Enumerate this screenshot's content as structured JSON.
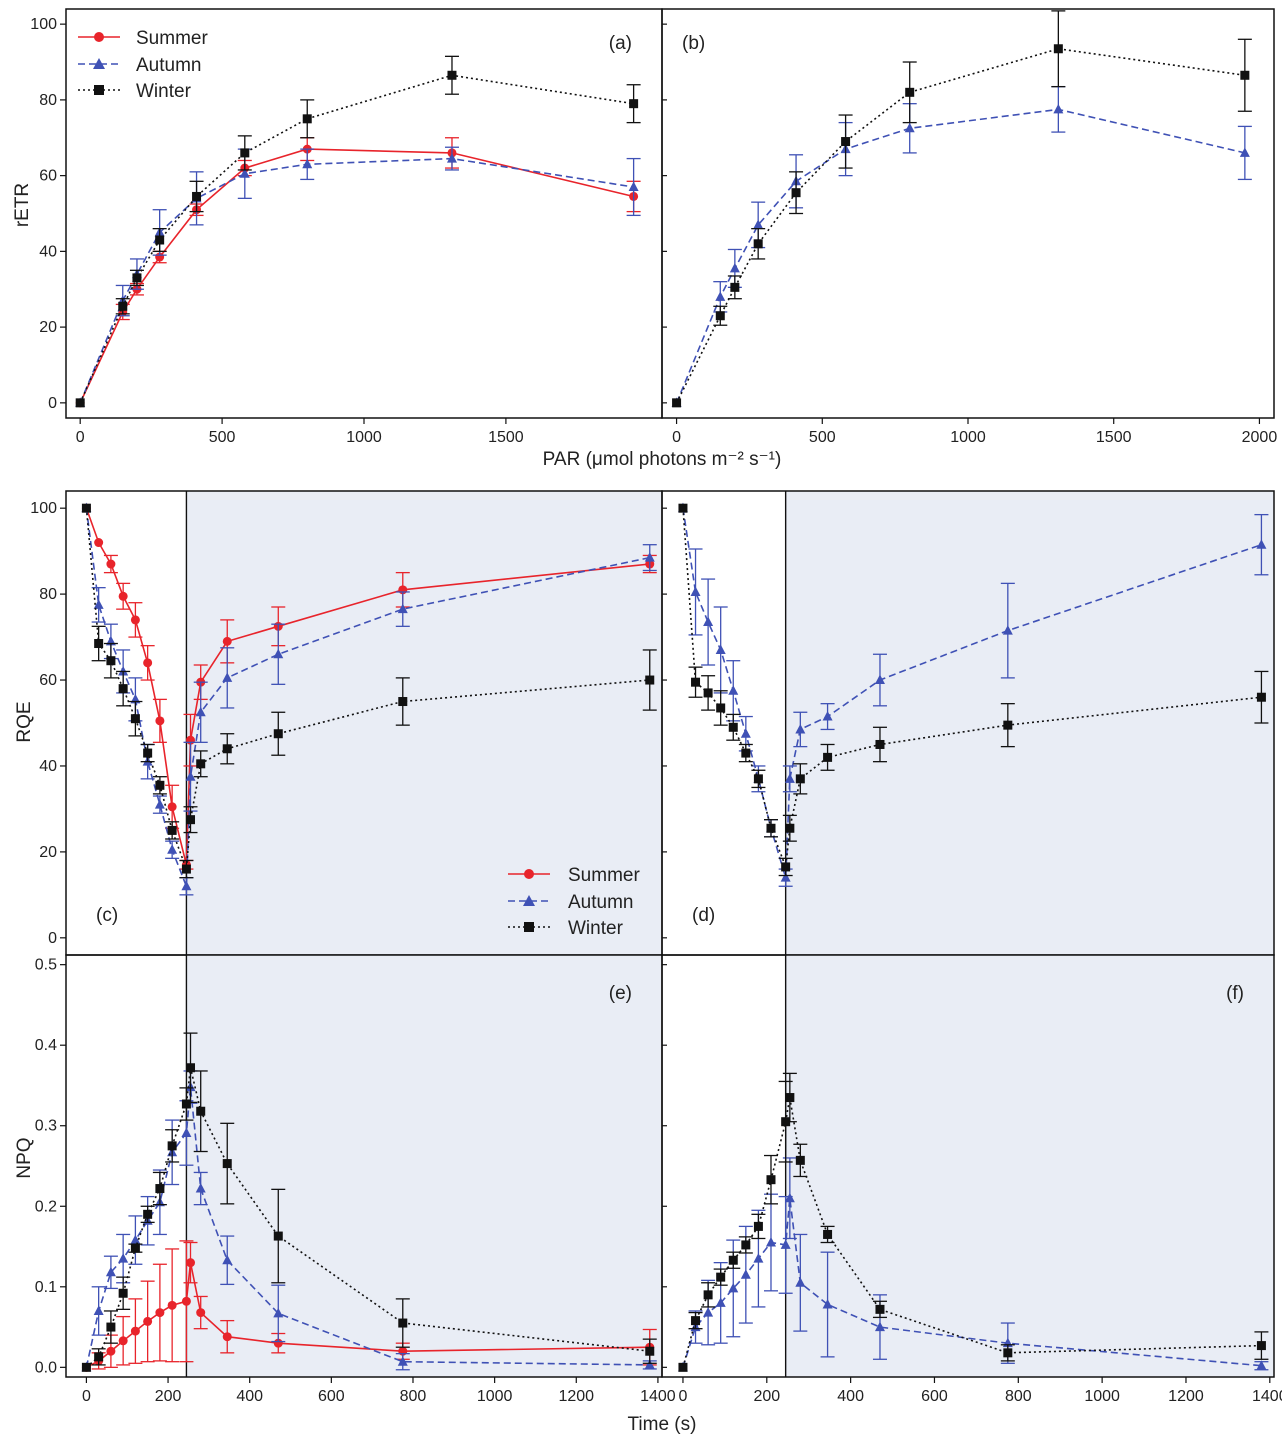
{
  "colors": {
    "summer": "#e8242b",
    "autumn": "#3f51b5",
    "winter": "#111111",
    "shade": "#e9edf5"
  },
  "labels": {
    "rETR": "rETR",
    "RQE": "RQE",
    "NPQ": "NPQ",
    "PAR": "PAR (μmol photons m⁻² s⁻¹)",
    "time": "Time (s)"
  },
  "legend": {
    "summer": "Summer",
    "autumn": "Autumn",
    "winter": "Winter"
  },
  "chart_data": [
    {
      "id": "a",
      "panel_label": "(a)",
      "type": "line",
      "xlim": [
        -50,
        2050
      ],
      "ylim": [
        -4,
        104
      ],
      "xticks": [
        0,
        500,
        1000,
        1500
      ],
      "yticks": [
        0,
        20,
        40,
        60,
        80,
        100
      ],
      "series": [
        {
          "name": "Summer",
          "key": "summer",
          "x": [
            0,
            150,
            200,
            280,
            410,
            580,
            800,
            1310,
            1950
          ],
          "y": [
            0,
            24,
            30,
            38.5,
            51,
            62,
            67,
            66,
            54.5
          ],
          "err": [
            0,
            2,
            1.5,
            1.5,
            1.5,
            2,
            3,
            4,
            4
          ]
        },
        {
          "name": "Autumn",
          "key": "autumn",
          "x": [
            0,
            150,
            200,
            280,
            410,
            580,
            800,
            1310,
            1950
          ],
          "y": [
            0,
            27,
            34,
            45,
            54,
            60.5,
            63,
            64.5,
            57
          ],
          "err": [
            0,
            4,
            4,
            6,
            7,
            6.5,
            4,
            3,
            7.5
          ]
        },
        {
          "name": "Winter",
          "key": "winter",
          "x": [
            0,
            150,
            200,
            280,
            410,
            580,
            800,
            1310,
            1950
          ],
          "y": [
            0,
            25.5,
            33,
            43,
            54.5,
            66,
            75,
            86.5,
            79
          ],
          "err": [
            0,
            2,
            2,
            3,
            4,
            4.5,
            5,
            5,
            5
          ]
        }
      ]
    },
    {
      "id": "b",
      "panel_label": "(b)",
      "type": "line",
      "xlim": [
        -50,
        2050
      ],
      "ylim": [
        -4,
        104
      ],
      "xticks": [
        0,
        500,
        1000,
        1500,
        2000
      ],
      "yticks": [],
      "series": [
        {
          "name": "Autumn",
          "key": "autumn",
          "x": [
            0,
            150,
            200,
            280,
            410,
            580,
            800,
            1310,
            1950
          ],
          "y": [
            0,
            28,
            35.5,
            47,
            58.5,
            67,
            72.5,
            77.5,
            66
          ],
          "err": [
            0,
            4,
            5,
            6,
            7,
            7,
            6.5,
            6,
            7
          ]
        },
        {
          "name": "Winter",
          "key": "winter",
          "x": [
            0,
            150,
            200,
            280,
            410,
            580,
            800,
            1310,
            1950
          ],
          "y": [
            0,
            23,
            30.5,
            42,
            55.5,
            69,
            82,
            93.5,
            86.5
          ],
          "err": [
            0,
            2.5,
            3,
            4,
            5.5,
            7,
            8,
            10,
            9.5
          ]
        }
      ]
    },
    {
      "id": "c",
      "panel_label": "(c)",
      "type": "line",
      "xlim": [
        -50,
        1410
      ],
      "ylim": [
        -4,
        104
      ],
      "yticks": [
        0,
        20,
        40,
        60,
        80,
        100
      ],
      "xticks": [],
      "light_off": 245,
      "series": [
        {
          "name": "Summer",
          "key": "summer",
          "x": [
            0,
            30,
            60,
            90,
            120,
            150,
            180,
            210,
            245,
            255,
            280,
            345,
            470,
            775,
            1380
          ],
          "y": [
            100,
            92,
            87,
            79.5,
            74,
            64,
            50.5,
            30.5,
            17,
            46,
            59.5,
            69,
            72.5,
            81,
            87
          ],
          "err": [
            0,
            0,
            2,
            3,
            4,
            4,
            5,
            5,
            1,
            6,
            4,
            5,
            4.5,
            4,
            2
          ]
        },
        {
          "name": "Autumn",
          "key": "autumn",
          "x": [
            0,
            30,
            60,
            90,
            120,
            150,
            180,
            210,
            245,
            255,
            280,
            345,
            470,
            775,
            1380
          ],
          "y": [
            100,
            77.5,
            69,
            62,
            55.5,
            41,
            31,
            20.5,
            12,
            37.5,
            52.5,
            60.5,
            66,
            76.5,
            88.5
          ],
          "err": [
            0,
            4,
            4,
            5,
            5,
            4,
            2,
            2,
            2,
            8,
            7,
            7,
            7,
            4,
            3
          ]
        },
        {
          "name": "Winter",
          "key": "winter",
          "x": [
            0,
            30,
            60,
            90,
            120,
            150,
            180,
            210,
            245,
            255,
            280,
            345,
            470,
            775,
            1380
          ],
          "y": [
            100,
            68.5,
            64.5,
            58,
            51,
            43,
            35.5,
            25,
            16,
            27.5,
            40.5,
            44,
            47.5,
            55,
            60
          ],
          "err": [
            0,
            4,
            4,
            4,
            4,
            2,
            2,
            2,
            2,
            3,
            3,
            3.5,
            5,
            5.5,
            7
          ]
        }
      ]
    },
    {
      "id": "d",
      "panel_label": "(d)",
      "type": "line",
      "xlim": [
        -50,
        1410
      ],
      "ylim": [
        -4,
        104
      ],
      "yticks": [],
      "xticks": [],
      "light_off": 245,
      "series": [
        {
          "name": "Autumn",
          "key": "autumn",
          "x": [
            0,
            30,
            60,
            90,
            120,
            150,
            180,
            210,
            245,
            255,
            280,
            345,
            470,
            775,
            1380
          ],
          "y": [
            100,
            80.5,
            73.5,
            67,
            57.5,
            47.5,
            37,
            25.5,
            14,
            37,
            48.5,
            51.5,
            60,
            71.5,
            91.5
          ],
          "err": [
            0,
            10,
            10,
            10,
            7,
            4,
            3,
            2,
            2,
            3,
            4,
            3,
            6,
            11,
            7
          ]
        },
        {
          "name": "Winter",
          "key": "winter",
          "x": [
            0,
            30,
            60,
            90,
            120,
            150,
            180,
            210,
            245,
            255,
            280,
            345,
            470,
            775,
            1380
          ],
          "y": [
            100,
            59.5,
            57,
            53.5,
            49,
            43,
            37,
            25.5,
            16.5,
            25.5,
            37,
            42,
            45,
            49.5,
            56
          ],
          "err": [
            0,
            3.5,
            4,
            4,
            3,
            2,
            2,
            2,
            2,
            3,
            3.5,
            3,
            4,
            5,
            6
          ]
        }
      ]
    },
    {
      "id": "e",
      "panel_label": "(e)",
      "type": "line",
      "xlim": [
        -50,
        1410
      ],
      "ylim": [
        -0.012,
        0.512
      ],
      "yticks": [
        0.0,
        0.1,
        0.2,
        0.3,
        0.4,
        0.5
      ],
      "xticks": [
        0,
        200,
        400,
        600,
        800,
        1000,
        1200,
        1400
      ],
      "light_off": 245,
      "series": [
        {
          "name": "Summer",
          "key": "summer",
          "x": [
            0,
            30,
            60,
            90,
            120,
            150,
            180,
            210,
            245,
            255,
            280,
            345,
            470,
            775,
            1380
          ],
          "y": [
            0,
            0.008,
            0.02,
            0.033,
            0.045,
            0.057,
            0.068,
            0.077,
            0.082,
            0.13,
            0.068,
            0.038,
            0.03,
            0.02,
            0.025
          ],
          "err": [
            0,
            0.01,
            0.02,
            0.03,
            0.04,
            0.05,
            0.06,
            0.07,
            0.075,
            0.025,
            0.02,
            0.02,
            0.012,
            0.01,
            0.022
          ]
        },
        {
          "name": "Autumn",
          "key": "autumn",
          "x": [
            0,
            30,
            60,
            90,
            120,
            150,
            180,
            210,
            245,
            255,
            280,
            345,
            470,
            775,
            1380
          ],
          "y": [
            0,
            0.07,
            0.118,
            0.135,
            0.158,
            0.182,
            0.205,
            0.267,
            0.291,
            0.348,
            0.222,
            0.133,
            0.067,
            0.007,
            0.003
          ],
          "err": [
            0,
            0.03,
            0.02,
            0.03,
            0.03,
            0.03,
            0.04,
            0.04,
            0.04,
            0.02,
            0.02,
            0.03,
            0.035,
            0.01,
            0.005
          ]
        },
        {
          "name": "Winter",
          "key": "winter",
          "x": [
            0,
            30,
            60,
            90,
            120,
            150,
            180,
            210,
            245,
            255,
            280,
            345,
            470,
            775,
            1380
          ],
          "y": [
            0,
            0.013,
            0.05,
            0.092,
            0.148,
            0.19,
            0.222,
            0.275,
            0.327,
            0.372,
            0.318,
            0.253,
            0.163,
            0.055,
            0.02
          ],
          "err": [
            0,
            0.01,
            0.02,
            0.02,
            0.005,
            0.01,
            0.02,
            0.02,
            0.02,
            0.043,
            0.05,
            0.05,
            0.058,
            0.03,
            0.015
          ]
        }
      ]
    },
    {
      "id": "f",
      "panel_label": "(f)",
      "type": "line",
      "xlim": [
        -50,
        1410
      ],
      "ylim": [
        -0.012,
        0.512
      ],
      "yticks": [],
      "xticks": [
        0,
        200,
        400,
        600,
        800,
        1000,
        1200,
        1400
      ],
      "light_off": 245,
      "series": [
        {
          "name": "Autumn",
          "key": "autumn",
          "x": [
            0,
            30,
            60,
            90,
            120,
            150,
            180,
            210,
            245,
            255,
            280,
            345,
            470,
            775,
            1380
          ],
          "y": [
            0,
            0.05,
            0.068,
            0.08,
            0.098,
            0.115,
            0.135,
            0.155,
            0.152,
            0.21,
            0.105,
            0.078,
            0.05,
            0.03,
            0.002
          ],
          "err": [
            0,
            0.02,
            0.04,
            0.05,
            0.06,
            0.06,
            0.06,
            0.06,
            0.06,
            0.05,
            0.06,
            0.065,
            0.04,
            0.025,
            0.005
          ]
        },
        {
          "name": "Winter",
          "key": "winter",
          "x": [
            0,
            30,
            60,
            90,
            120,
            150,
            180,
            210,
            245,
            255,
            280,
            345,
            470,
            775,
            1380
          ],
          "y": [
            0,
            0.058,
            0.09,
            0.112,
            0.133,
            0.152,
            0.175,
            0.233,
            0.305,
            0.335,
            0.257,
            0.165,
            0.072,
            0.018,
            0.027
          ],
          "err": [
            0,
            0.01,
            0.015,
            0.01,
            0.01,
            0.01,
            0.015,
            0.03,
            0.05,
            0.03,
            0.02,
            0.01,
            0.01,
            0.01,
            0.017
          ]
        }
      ]
    }
  ]
}
